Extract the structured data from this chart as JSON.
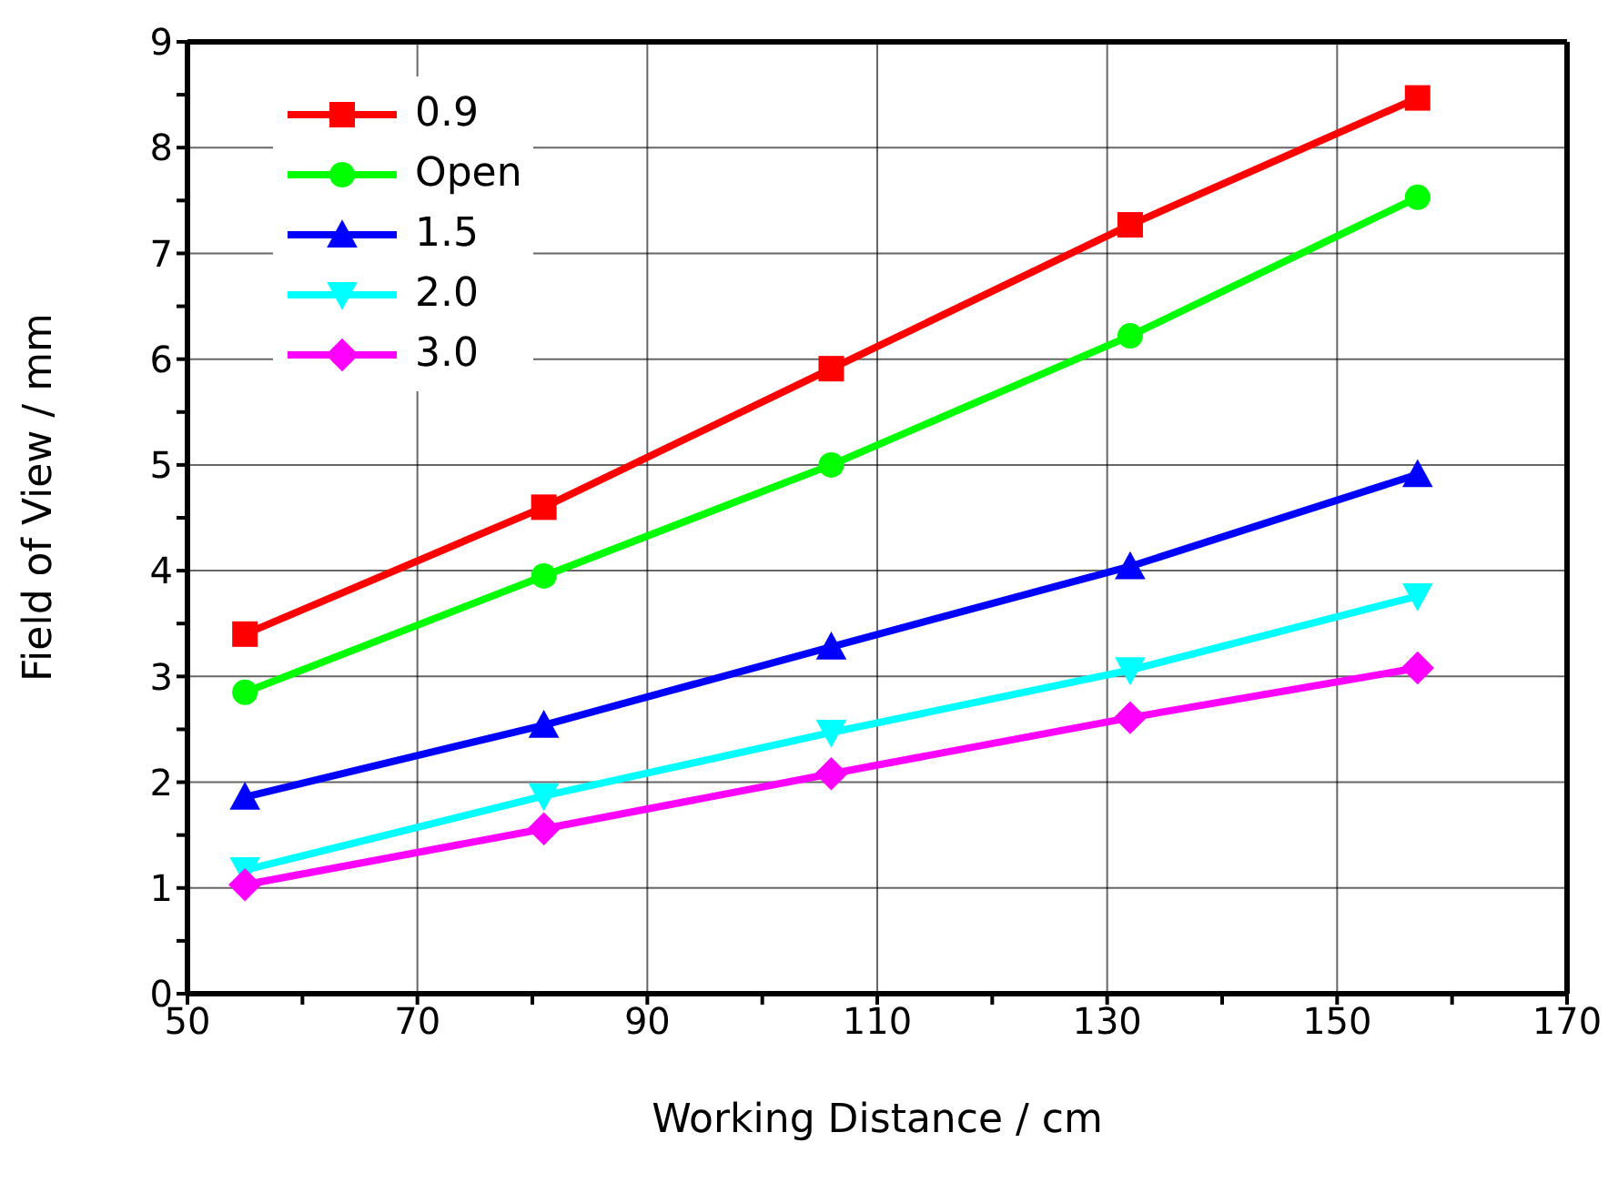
{
  "chart_data": {
    "type": "line",
    "xlabel": "Working Distance / cm",
    "ylabel": "Field of View / mm",
    "x": [
      55,
      81,
      106,
      132,
      157
    ],
    "series": [
      {
        "name": "0.9",
        "color": "#ff0000",
        "marker": "square",
        "values": [
          3.4,
          4.6,
          5.91,
          7.27,
          8.47
        ]
      },
      {
        "name": "Open",
        "color": "#00ff00",
        "marker": "circle",
        "values": [
          2.85,
          3.95,
          5.0,
          6.22,
          7.53
        ]
      },
      {
        "name": "1.5",
        "color": "#0000ff",
        "marker": "triangle",
        "values": [
          1.86,
          2.54,
          3.28,
          4.04,
          4.91
        ]
      },
      {
        "name": "2.0",
        "color": "#00ffff",
        "marker": "triangle_down",
        "values": [
          1.17,
          1.87,
          2.47,
          3.06,
          3.76
        ]
      },
      {
        "name": "3.0",
        "color": "#ff00ff",
        "marker": "diamond",
        "values": [
          1.03,
          1.56,
          2.08,
          2.61,
          3.08
        ]
      }
    ],
    "xlim": [
      50,
      170
    ],
    "xticks": [
      50,
      {
        "value": 60,
        "label": null
      },
      70,
      {
        "value": 80,
        "label": null
      },
      90,
      {
        "value": 100,
        "label": null
      },
      110,
      {
        "value": 120,
        "label": null
      },
      130,
      {
        "value": 140,
        "label": null
      },
      150,
      {
        "value": 160,
        "label": null
      },
      170
    ],
    "ylim": [
      0,
      9
    ],
    "yticks": [
      0,
      {
        "value": 0.5,
        "label": null
      },
      1,
      {
        "value": 1.5,
        "label": null
      },
      2,
      {
        "value": 2.5,
        "label": null
      },
      3,
      {
        "value": 3.5,
        "label": null
      },
      4,
      {
        "value": 4.5,
        "label": null
      },
      5,
      {
        "value": 5.5,
        "label": null
      },
      6,
      {
        "value": 6.5,
        "label": null
      },
      7,
      {
        "value": 7.5,
        "label": null
      },
      8,
      {
        "value": 8.5,
        "label": null
      },
      9
    ],
    "grid": true,
    "legend": "top left",
    "line_style": "solid"
  }
}
